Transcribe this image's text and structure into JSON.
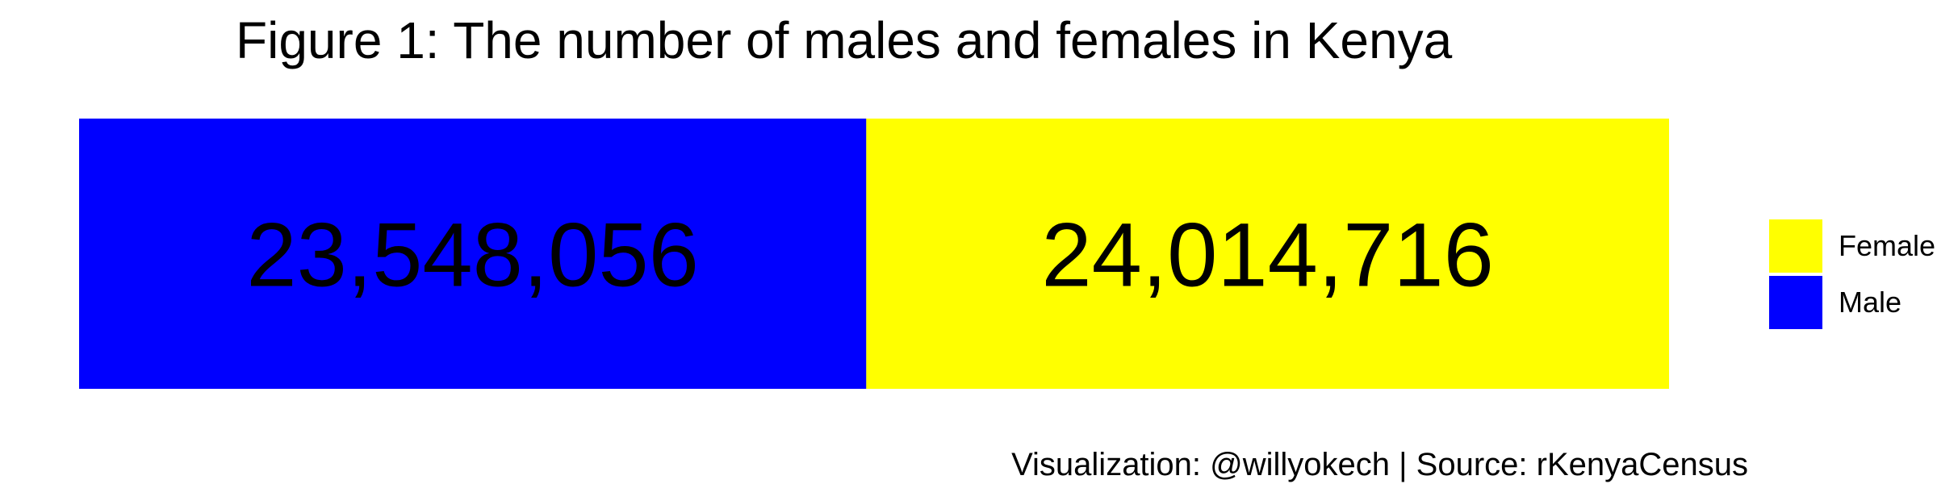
{
  "chart_data": {
    "type": "bar",
    "orientation": "horizontal-stacked",
    "title": "Figure 1: The number of males and females in Kenya",
    "categories": [
      "Male",
      "Female"
    ],
    "values": [
      23548056,
      24014716
    ],
    "data_labels": [
      "23,548,056",
      "24,014,716"
    ],
    "colors": {
      "Male": "#0000ff",
      "Female": "#ffff00"
    },
    "legend": {
      "position": "right",
      "entries": [
        {
          "label": "Female",
          "color": "#ffff00"
        },
        {
          "label": "Male",
          "color": "#0000ff"
        }
      ]
    },
    "grid": false,
    "caption": "Visualization: @willyokech | Source: rKenyaCensus"
  }
}
